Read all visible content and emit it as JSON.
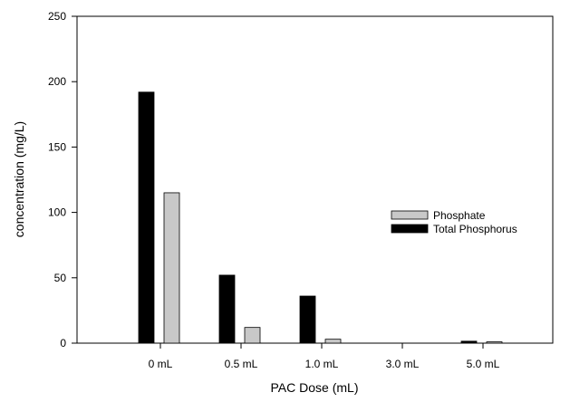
{
  "chart_data": {
    "type": "bar",
    "categories": [
      "0 mL",
      "0.5 mL",
      "1.0 mL",
      "3.0 mL",
      "5.0 mL"
    ],
    "series": [
      {
        "name": "Total Phosphorus",
        "values": [
          192,
          52,
          36,
          0,
          1.5
        ],
        "color": "#000000"
      },
      {
        "name": "Phosphate",
        "values": [
          115,
          12,
          3,
          0,
          1
        ],
        "color": "#c8c8c8"
      }
    ],
    "title": "",
    "xlabel": "PAC Dose (mL)",
    "ylabel": "concentration (mg/L)",
    "ylim": [
      0,
      250
    ],
    "yticks": [
      "0",
      "50",
      "100",
      "150",
      "200",
      "250"
    ],
    "grid": false,
    "legend": {
      "position": "center-right",
      "entries": [
        {
          "label": "Phosphate",
          "color": "#c8c8c8"
        },
        {
          "label": "Total Phosphorus",
          "color": "#000000"
        }
      ]
    }
  }
}
